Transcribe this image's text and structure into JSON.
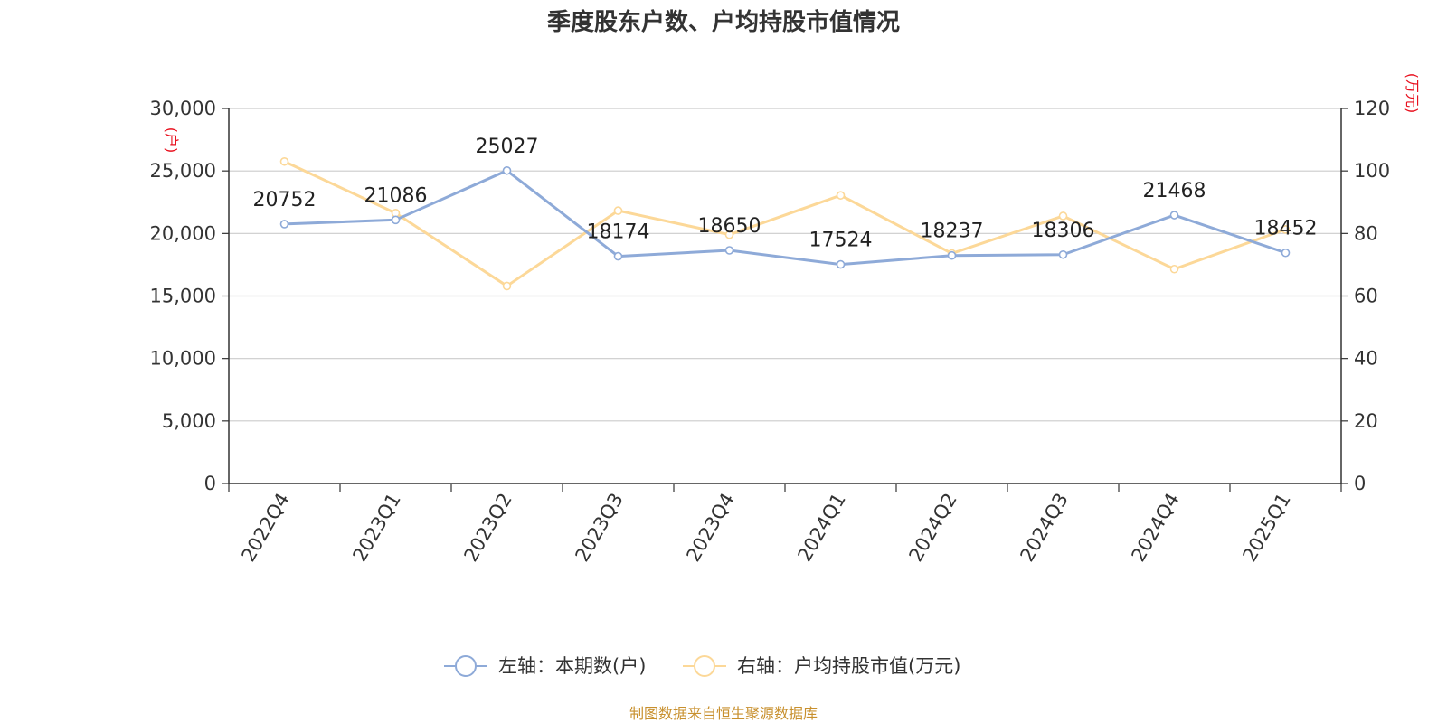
{
  "title": "季度股东户数、户均持股市值情况",
  "source": "制图数据来自恒生聚源数据库",
  "colors": {
    "left_series": "#8eaad8",
    "right_series": "#fcd898",
    "unit": "#e8101e",
    "source": "#c8902e"
  },
  "chart_data": {
    "type": "line",
    "title": "季度股东户数、户均持股市值情况",
    "categories": [
      "2022Q4",
      "2023Q1",
      "2023Q2",
      "2023Q3",
      "2023Q4",
      "2024Q1",
      "2024Q2",
      "2024Q3",
      "2024Q4",
      "2025Q1"
    ],
    "left_axis": {
      "unit": "(户)",
      "min": 0,
      "max": 30000,
      "ticks": [
        "0",
        "5,000",
        "10,000",
        "15,000",
        "20,000",
        "25,000",
        "30,000"
      ]
    },
    "right_axis": {
      "unit": "(万元)",
      "min": 0,
      "max": 120,
      "ticks": [
        "0",
        "20",
        "40",
        "60",
        "80",
        "100",
        "120"
      ]
    },
    "grid": true,
    "legend_position": "bottom",
    "series": [
      {
        "name": "左轴：本期数(户)",
        "axis": "left",
        "values": [
          20752,
          21086,
          25027,
          18174,
          18650,
          17524,
          18237,
          18306,
          21468,
          18452
        ],
        "labels": [
          "20752",
          "21086",
          "25027",
          "18174",
          "18650",
          "17524",
          "18237",
          "18306",
          "21468",
          "18452"
        ]
      },
      {
        "name": "右轴：户均持股市值(万元)",
        "axis": "right",
        "values": [
          103,
          86.5,
          63.2,
          87.3,
          79.6,
          92.2,
          73.6,
          85.6,
          68.6,
          81.3
        ]
      }
    ]
  }
}
